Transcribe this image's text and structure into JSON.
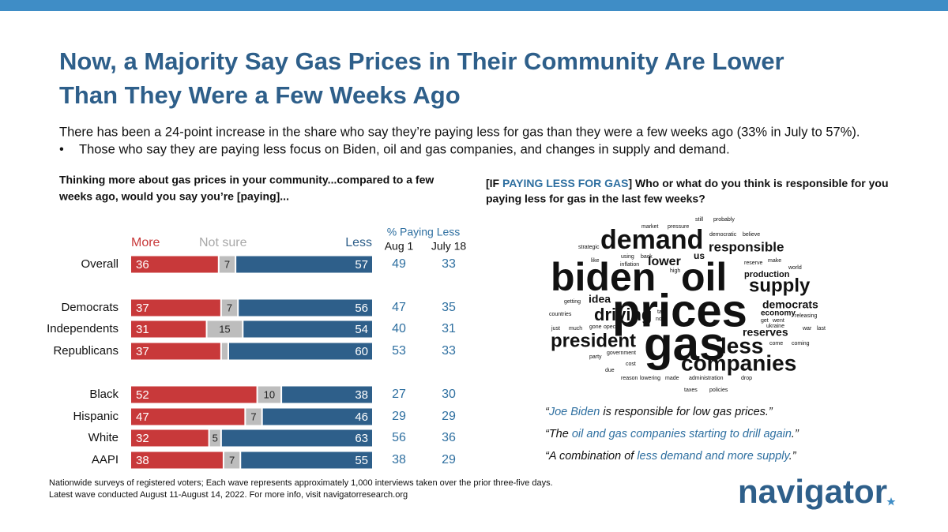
{
  "header": {
    "title": [
      "Now, a Majority Say Gas Prices in Their Community Are Lower",
      "Than They Were a Few Weeks Ago"
    ],
    "subtitle": "There has been a 24-point increase in the share who say they’re paying less for gas than they were a few weeks ago (33% in July to 57%).",
    "bullet": "Those who say they are paying less focus on Biden, oil and gas companies, and changes in supply and demand."
  },
  "chart_data": {
    "type": "diverging_bar",
    "question": [
      "Thinking more about gas prices in your community...compared to a few",
      "weeks ago, would you say you’re [paying]..."
    ],
    "categories": [
      "Overall",
      "Democrats",
      "Independents",
      "Republicans",
      "Black",
      "Hispanic",
      "White",
      "AAPI"
    ],
    "series": [
      {
        "name": "More",
        "color": "#c8393a",
        "values": [
          36,
          37,
          31,
          37,
          52,
          47,
          32,
          38
        ]
      },
      {
        "name": "Not sure",
        "color": "#bdbdbd",
        "values": [
          7,
          7,
          15,
          3,
          10,
          7,
          5,
          7
        ]
      },
      {
        "name": "Less",
        "color": "#2e5f8a",
        "values": [
          57,
          56,
          54,
          60,
          38,
          46,
          63,
          55
        ]
      }
    ],
    "columns_title": "% Paying Less",
    "columns": [
      {
        "name": "Aug 1",
        "values": [
          49,
          47,
          40,
          53,
          27,
          29,
          56,
          38
        ]
      },
      {
        "name": "July 18",
        "values": [
          33,
          35,
          31,
          33,
          30,
          29,
          36,
          29
        ]
      }
    ]
  },
  "right_question": {
    "prefix": "[IF ",
    "highlight": "PAYING LESS FOR GAS",
    "rest": "] Who or what do you think is responsible for you",
    "line2": "paying less for gas in the last few weeks?"
  },
  "word_cloud": [
    "still",
    "probably",
    "market",
    "pressure",
    "democratic",
    "believe",
    "strategic",
    "demand",
    "responsible",
    "like",
    "using",
    "back",
    "inflation",
    "lower",
    "us",
    "high",
    "reserve",
    "make",
    "world",
    "production",
    "biden",
    "oil",
    "supply",
    "idea",
    "getting",
    "democrats",
    "countries",
    "driving",
    "prices",
    "tax",
    "now",
    "economy",
    "get",
    "went",
    "ukraine",
    "just",
    "much",
    "gone",
    "opec",
    "war",
    "last",
    "releasing",
    "president",
    "gas",
    "less",
    "reserves",
    "come",
    "coming",
    "party",
    "government",
    "companies",
    "cost",
    "due",
    "reason",
    "lowering",
    "made",
    "administration",
    "drop",
    "taxes",
    "policies"
  ],
  "quotes": [
    [
      "“",
      "Joe Biden",
      " is responsible for low gas prices.”"
    ],
    [
      "“The ",
      "oil and gas companies starting to drill again",
      ".”"
    ],
    [
      "“A combination of ",
      "less demand and more supply",
      ".”"
    ]
  ],
  "footnote": [
    "Nationwide surveys of registered voters; Each wave represents approximately 1,000 interviews taken over the prior three-five days.",
    "Latest wave conducted August 11-August 14, 2022. For more info, visit navigatorresearch.org"
  ],
  "logo": "navigator"
}
